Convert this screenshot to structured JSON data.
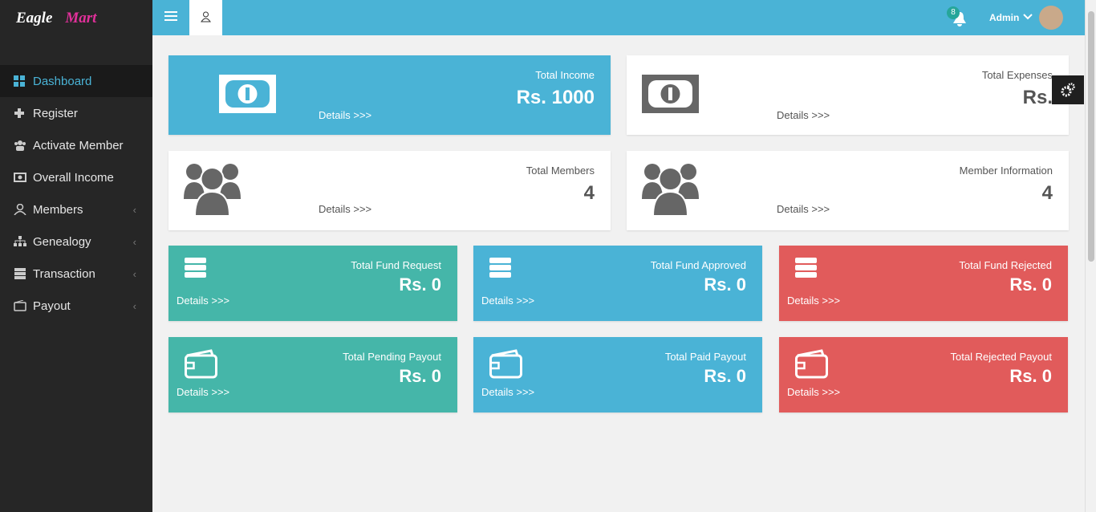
{
  "sidebar": {
    "logo": {
      "first": "Eagle",
      "second": "Mart"
    },
    "menu": [
      "Dashboard",
      "Register",
      "Activate Member",
      "Overall Income",
      "Members",
      "Genealogy",
      "Transaction",
      "Payout"
    ]
  },
  "header": {
    "notifications": "8",
    "user": "Admin"
  },
  "cards": [
    {
      "title": "Total Income",
      "value": "Rs. 1000",
      "link": "Details >>>"
    },
    {
      "title": "Total Expenses",
      "value": "Rs.",
      "link": "Details >>>"
    },
    {
      "title": "Total Members",
      "value": 4,
      "link": "Details >>>"
    },
    {
      "title": "Member Information",
      "value": 4,
      "link": "Details >>>"
    },
    {
      "title": "Total Fund Request",
      "value": "Rs. 0",
      "link": "Details >>>"
    },
    {
      "title": "Total Fund Approved",
      "value": "Rs. 0",
      "link": "Details >>>"
    },
    {
      "title": "Total Fund Rejected",
      "value": "Rs. 0",
      "link": "Details >>>"
    },
    {
      "title": "Total Pending Payout",
      "value": "Rs. 0",
      "link": "Details >>>"
    },
    {
      "title": "Total Paid Payout",
      "value": "Rs. 0",
      "link": "Details >>>"
    },
    {
      "title": "Total Rejected Payout",
      "value": "Rs. 0",
      "link": "Details >>>"
    }
  ]
}
